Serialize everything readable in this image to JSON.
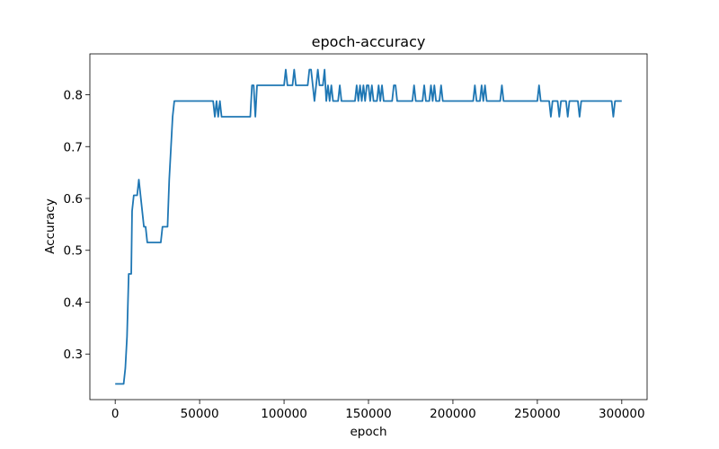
{
  "chart_data": {
    "type": "line",
    "title": "epoch-accuracy",
    "x_label": "epoch",
    "y_label": "Accuracy",
    "x": [
      0,
      5000,
      6000,
      7000,
      8000,
      9500,
      10000,
      11000,
      13000,
      14000,
      15000,
      16000,
      17000,
      18000,
      19000,
      27000,
      28000,
      31000,
      32000,
      34000,
      35000,
      58000,
      59000,
      60000,
      61000,
      62000,
      63000,
      80000,
      81000,
      82000,
      83000,
      84000,
      100000,
      101000,
      102000,
      105000,
      106000,
      107000,
      114000,
      115000,
      116000,
      117000,
      118000,
      119000,
      120000,
      121000,
      123000,
      124000,
      125000,
      126000,
      127000,
      128000,
      129000,
      132000,
      133000,
      134000,
      142000,
      143000,
      144000,
      145000,
      146000,
      147000,
      148000,
      149000,
      150000,
      151000,
      152000,
      153000,
      155000,
      156000,
      157000,
      158000,
      159000,
      164000,
      165000,
      166000,
      167000,
      176000,
      177000,
      178000,
      182000,
      183000,
      184000,
      186000,
      187000,
      188000,
      189000,
      190000,
      192000,
      193000,
      194000,
      212000,
      213000,
      214000,
      216000,
      217000,
      218000,
      219000,
      220000,
      228000,
      229000,
      230000,
      250000,
      251000,
      252000,
      257000,
      258000,
      259000,
      262000,
      263000,
      264000,
      267000,
      268000,
      269000,
      274000,
      275000,
      276000,
      294000,
      295000,
      296000,
      300000
    ],
    "series": [
      {
        "name": "accuracy",
        "color": "#1f77b4",
        "values": [
          0.2424,
          0.2424,
          0.2727,
          0.3333,
          0.4545,
          0.4545,
          0.5758,
          0.6061,
          0.6061,
          0.6364,
          0.6061,
          0.5758,
          0.5455,
          0.5455,
          0.5152,
          0.5152,
          0.5455,
          0.5455,
          0.6364,
          0.7576,
          0.7879,
          0.7879,
          0.7576,
          0.7879,
          0.7576,
          0.7879,
          0.7576,
          0.7576,
          0.8182,
          0.8182,
          0.7576,
          0.8182,
          0.8182,
          0.8485,
          0.8182,
          0.8182,
          0.8485,
          0.8182,
          0.8182,
          0.8485,
          0.8485,
          0.8182,
          0.7879,
          0.8182,
          0.8485,
          0.8182,
          0.8182,
          0.8485,
          0.7879,
          0.8182,
          0.7879,
          0.8182,
          0.7879,
          0.7879,
          0.8182,
          0.7879,
          0.7879,
          0.8182,
          0.7879,
          0.8182,
          0.7879,
          0.8182,
          0.7879,
          0.8182,
          0.8182,
          0.7879,
          0.8182,
          0.7879,
          0.7879,
          0.8182,
          0.7879,
          0.8182,
          0.7879,
          0.7879,
          0.8182,
          0.8182,
          0.7879,
          0.7879,
          0.8182,
          0.7879,
          0.7879,
          0.8182,
          0.7879,
          0.7879,
          0.8182,
          0.7879,
          0.8182,
          0.7879,
          0.7879,
          0.8182,
          0.7879,
          0.7879,
          0.8182,
          0.7879,
          0.7879,
          0.8182,
          0.7879,
          0.8182,
          0.7879,
          0.7879,
          0.8182,
          0.7879,
          0.7879,
          0.8182,
          0.7879,
          0.7879,
          0.7576,
          0.7879,
          0.7879,
          0.7576,
          0.7879,
          0.7879,
          0.7576,
          0.7879,
          0.7879,
          0.7576,
          0.7879,
          0.7879,
          0.7576,
          0.7879,
          0.7879
        ]
      }
    ],
    "xlim": [
      -15000,
      315000
    ],
    "xticks": [
      0,
      50000,
      100000,
      150000,
      200000,
      250000,
      300000
    ],
    "ylim": [
      0.2121,
      0.8788
    ],
    "yticks": [
      0.3,
      0.4,
      0.5,
      0.6,
      0.7,
      0.8
    ]
  }
}
